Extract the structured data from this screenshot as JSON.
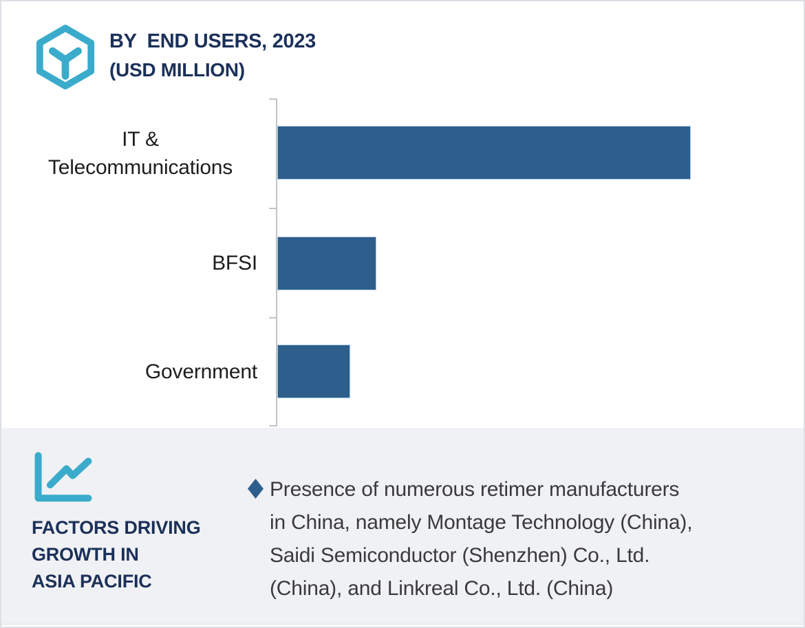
{
  "header": {
    "title": "BY  END USERS, 2023",
    "subtitle": "(USD MILLION)",
    "icon": "hexagon-cube-icon"
  },
  "chart_data": {
    "type": "bar",
    "orientation": "horizontal",
    "title": "BY END USERS, 2023 (USD MILLION)",
    "units": "USD Million",
    "categories": [
      "IT &\nTelecommunications",
      "BFSI",
      "Government"
    ],
    "values_relative_pct": [
      100,
      24,
      17.6
    ],
    "value_labels_shown": false,
    "gridlines": false,
    "legend": "none",
    "bar_color": "#2d5e8c",
    "axis_color": "#c1c3c4"
  },
  "footer": {
    "icon": "line-chart-icon",
    "heading": "FACTORS DRIVING\nGROWTH IN\nASIA PACIFIC",
    "bullet_marker": "diamond-icon",
    "bullet_text": "Presence of numerous retimer manufacturers\nin China, namely Montage Technology (China),\nSaidi Semiconductor (Shenzhen) Co., Ltd.\n(China), and Linkreal Co., Ltd. (China)"
  },
  "colors": {
    "accent_teal": "#3aabcb",
    "navy": "#1b3059",
    "bar_blue": "#2d5e8c",
    "panel_gray": "#f0f1f4",
    "body_text": "#3a3a3a"
  }
}
